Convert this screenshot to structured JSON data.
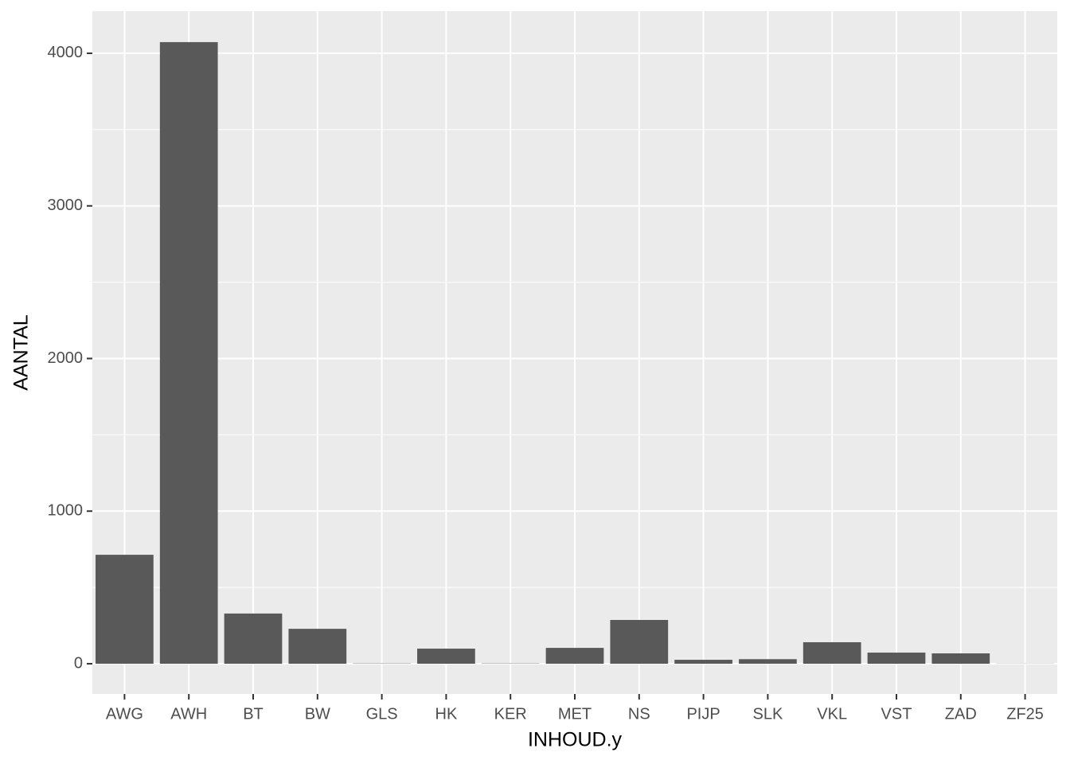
{
  "chart_data": {
    "type": "bar",
    "x_label": "INHOUD.y",
    "y_label": "AANTAL",
    "categories": [
      "AWG",
      "AWH",
      "BT",
      "BW",
      "GLS",
      "HK",
      "KER",
      "MET",
      "NS",
      "PIJP",
      "SLK",
      "VKL",
      "VST",
      "ZAD",
      "ZF25"
    ],
    "values": [
      714,
      4073,
      329,
      229,
      2,
      99,
      2,
      104,
      287,
      26,
      30,
      141,
      73,
      68,
      1
    ],
    "color": "#595959",
    "ylim": [
      -198,
      4276
    ],
    "yticks": [
      0,
      1000,
      2000,
      3000,
      4000
    ],
    "grid": true
  }
}
